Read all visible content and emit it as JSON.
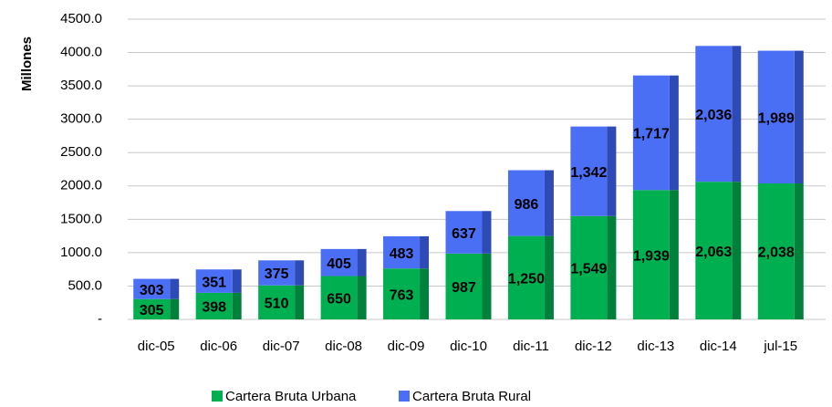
{
  "chart_data": {
    "type": "stacked-bar",
    "y_label": "Millones",
    "categories": [
      "dic-05",
      "dic-06",
      "dic-07",
      "dic-08",
      "dic-09",
      "dic-10",
      "dic-11",
      "dic-12",
      "dic-13",
      "dic-14",
      "jul-15"
    ],
    "series": [
      {
        "name": "Cartera Bruta Urbana",
        "color": "#00b050",
        "side_color": "#00803a",
        "values": [
          305,
          398,
          510,
          650,
          763,
          987,
          1250,
          1549,
          1939,
          2063,
          2038
        ],
        "value_labels": [
          "305",
          "398",
          "510",
          "650",
          "763",
          "987",
          "1,250",
          "1,549",
          "1,939",
          "2,063",
          "2,038"
        ]
      },
      {
        "name": "Cartera Bruta Rural",
        "color": "#4a6ff5",
        "side_color": "#2e4bb5",
        "values": [
          303,
          351,
          375,
          405,
          483,
          637,
          986,
          1342,
          1717,
          2036,
          1989
        ],
        "value_labels": [
          "303",
          "351",
          "375",
          "405",
          "483",
          "637",
          "986",
          "1,342",
          "1,717",
          "2,036",
          "1,989"
        ]
      }
    ],
    "ylim": [
      0,
      4500
    ],
    "yticks": [
      {
        "value": 0,
        "label": "-"
      },
      {
        "value": 500,
        "label": "500.0"
      },
      {
        "value": 1000,
        "label": "1000.0"
      },
      {
        "value": 1500,
        "label": "1500.0"
      },
      {
        "value": 2000,
        "label": "2000.0"
      },
      {
        "value": 2500,
        "label": "2500.0"
      },
      {
        "value": 3000,
        "label": "3000.0"
      },
      {
        "value": 3500,
        "label": "3500.0"
      },
      {
        "value": 4000,
        "label": "4000.0"
      },
      {
        "value": 4500,
        "label": "4500.0"
      }
    ],
    "grid": true,
    "legend": "bottom"
  }
}
